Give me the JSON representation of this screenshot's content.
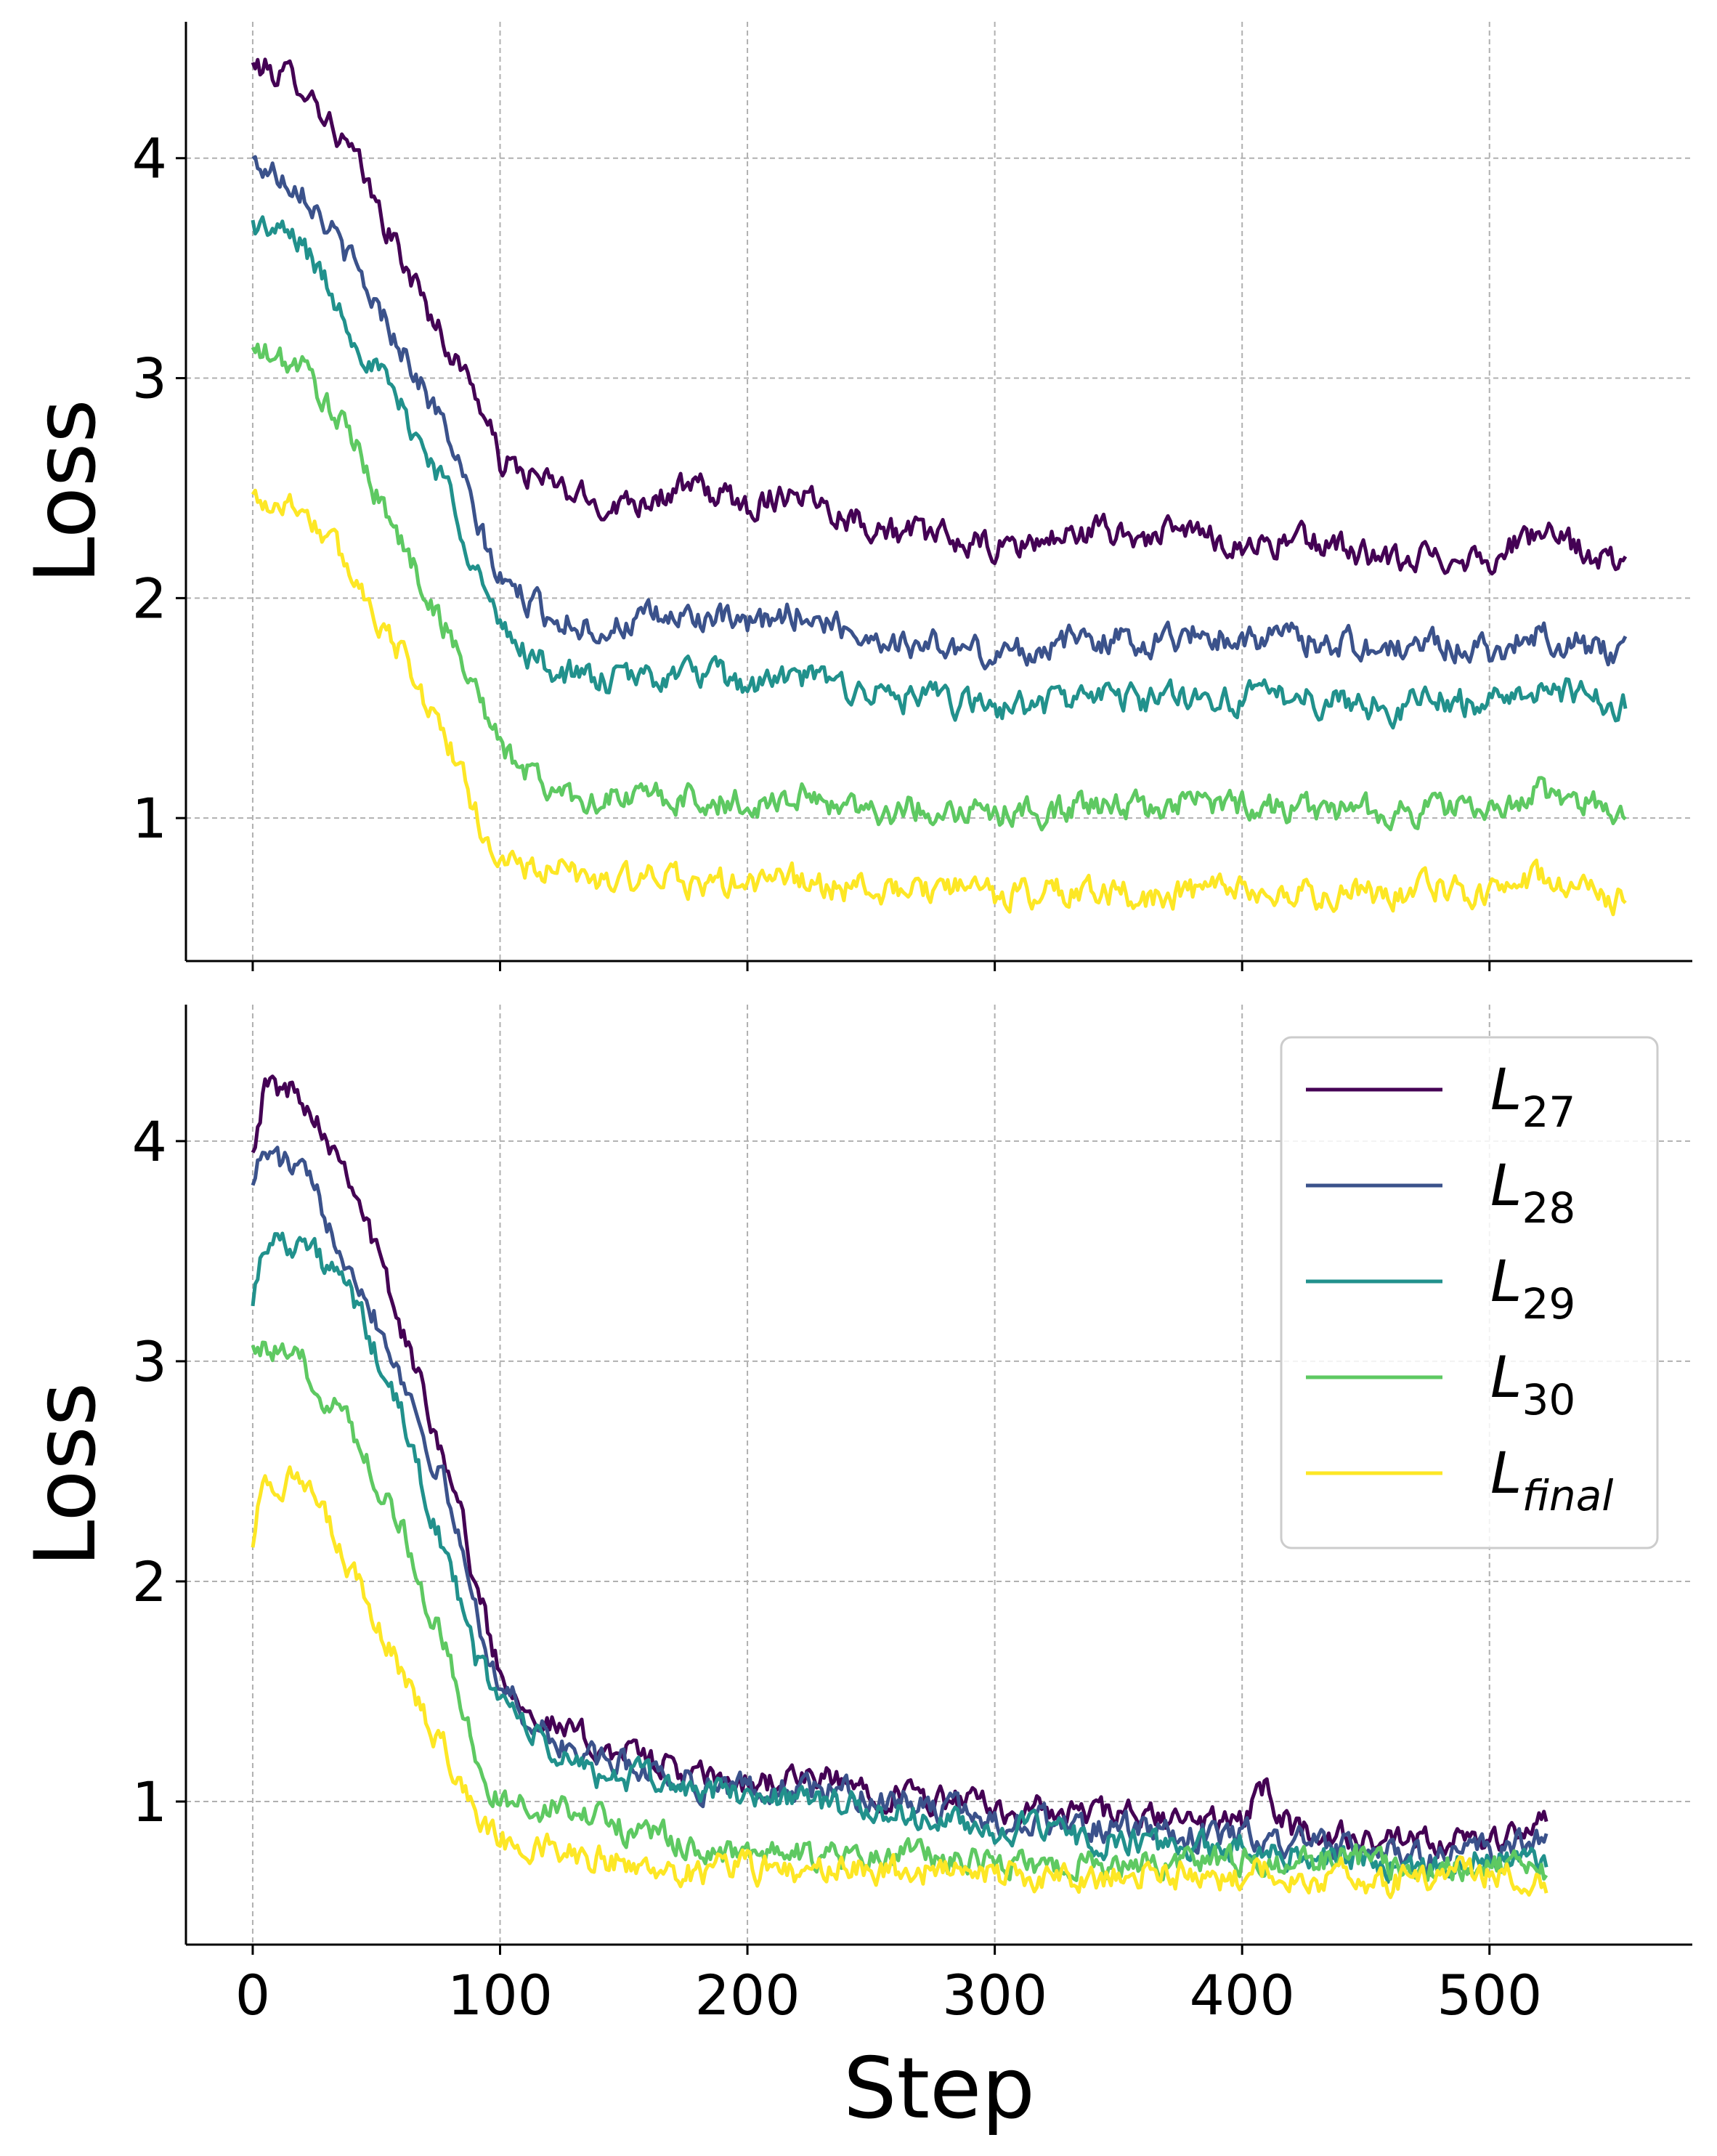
{
  "chart_data": [
    {
      "type": "line",
      "panel": "top",
      "title": "",
      "xlabel": "",
      "ylabel": "Loss",
      "xlim": [
        -27,
        582
      ],
      "ylim": [
        0.35,
        4.62
      ],
      "xticks": [
        0,
        100,
        200,
        300,
        400,
        500
      ],
      "yticks": [
        1,
        2,
        3,
        4
      ],
      "ytick_labels": [
        "1",
        "2",
        "3",
        "4"
      ],
      "grid": true,
      "legend": false,
      "steps": 555,
      "series": [
        {
          "name": "L_27",
          "color": "#440154",
          "x": [
            0,
            20,
            40,
            60,
            80,
            90,
            100,
            120,
            140,
            160,
            180,
            200,
            220,
            240,
            260,
            280,
            300,
            320,
            340,
            360,
            380,
            400,
            420,
            440,
            460,
            480,
            500,
            520,
            540,
            555
          ],
          "y": [
            4.42,
            4.35,
            4.02,
            3.55,
            3.12,
            2.95,
            2.62,
            2.52,
            2.42,
            2.46,
            2.5,
            2.42,
            2.5,
            2.38,
            2.3,
            2.27,
            2.22,
            2.26,
            2.31,
            2.28,
            2.3,
            2.24,
            2.26,
            2.24,
            2.15,
            2.2,
            2.18,
            2.3,
            2.2,
            2.15
          ]
        },
        {
          "name": "L_28",
          "color": "#3b528b",
          "x": [
            0,
            20,
            40,
            60,
            80,
            90,
            100,
            120,
            140,
            160,
            180,
            200,
            220,
            240,
            260,
            280,
            300,
            320,
            340,
            360,
            380,
            400,
            420,
            440,
            460,
            480,
            500,
            520,
            540,
            555
          ],
          "y": [
            3.98,
            3.88,
            3.52,
            3.15,
            2.72,
            2.35,
            2.08,
            1.92,
            1.86,
            1.9,
            1.92,
            1.86,
            1.94,
            1.86,
            1.8,
            1.78,
            1.74,
            1.78,
            1.82,
            1.8,
            1.84,
            1.82,
            1.82,
            1.8,
            1.76,
            1.8,
            1.76,
            1.84,
            1.78,
            1.75
          ]
        },
        {
          "name": "L_29",
          "color": "#21918c",
          "x": [
            0,
            20,
            40,
            60,
            80,
            90,
            100,
            120,
            140,
            160,
            180,
            200,
            220,
            240,
            260,
            280,
            300,
            320,
            340,
            360,
            380,
            400,
            420,
            440,
            460,
            480,
            500,
            520,
            540,
            555
          ],
          "y": [
            3.7,
            3.62,
            3.22,
            2.86,
            2.48,
            2.15,
            1.85,
            1.68,
            1.62,
            1.64,
            1.66,
            1.6,
            1.64,
            1.6,
            1.55,
            1.53,
            1.5,
            1.52,
            1.56,
            1.54,
            1.56,
            1.54,
            1.56,
            1.53,
            1.5,
            1.54,
            1.52,
            1.6,
            1.54,
            1.52
          ]
        },
        {
          "name": "L_30",
          "color": "#5ec962",
          "x": [
            0,
            20,
            40,
            60,
            80,
            90,
            100,
            120,
            140,
            160,
            180,
            200,
            220,
            240,
            260,
            280,
            300,
            320,
            340,
            360,
            380,
            400,
            420,
            440,
            460,
            480,
            500,
            520,
            540,
            555
          ],
          "y": [
            3.12,
            3.05,
            2.72,
            2.25,
            1.82,
            1.6,
            1.32,
            1.13,
            1.08,
            1.1,
            1.08,
            1.06,
            1.1,
            1.06,
            1.03,
            1.05,
            1.02,
            1.03,
            1.06,
            1.04,
            1.08,
            1.06,
            1.05,
            1.04,
            1.02,
            1.05,
            1.03,
            1.12,
            1.06,
            1.04
          ]
        },
        {
          "name": "L_final",
          "color": "#fde725",
          "x": [
            0,
            20,
            40,
            60,
            80,
            90,
            100,
            120,
            140,
            160,
            180,
            200,
            220,
            240,
            260,
            280,
            300,
            320,
            340,
            360,
            380,
            400,
            420,
            440,
            460,
            480,
            500,
            520,
            540,
            555
          ],
          "y": [
            2.45,
            2.42,
            2.12,
            1.75,
            1.32,
            1.02,
            0.8,
            0.76,
            0.72,
            0.72,
            0.7,
            0.7,
            0.72,
            0.68,
            0.66,
            0.68,
            0.65,
            0.66,
            0.67,
            0.64,
            0.66,
            0.66,
            0.65,
            0.65,
            0.64,
            0.68,
            0.66,
            0.72,
            0.68,
            0.62
          ]
        }
      ]
    },
    {
      "type": "line",
      "panel": "bottom",
      "title": "",
      "xlabel": "Step",
      "ylabel": "Loss",
      "xlim": [
        -27,
        582
      ],
      "ylim": [
        0.35,
        4.62
      ],
      "xticks": [
        0,
        100,
        200,
        300,
        400,
        500
      ],
      "xtick_labels": [
        "0",
        "100",
        "200",
        "300",
        "400",
        "500"
      ],
      "yticks": [
        1,
        2,
        3,
        4
      ],
      "ytick_labels": [
        "1",
        "2",
        "3",
        "4"
      ],
      "grid": true,
      "legend": true,
      "legend_position": "top-right",
      "steps": 523,
      "series": [
        {
          "name": "L_27",
          "color": "#440154",
          "x": [
            0,
            5,
            20,
            40,
            60,
            80,
            90,
            100,
            120,
            140,
            160,
            180,
            200,
            220,
            240,
            260,
            280,
            300,
            320,
            340,
            360,
            380,
            400,
            410,
            420,
            440,
            460,
            480,
            500,
            523
          ],
          "y": [
            4.0,
            4.25,
            4.22,
            3.85,
            3.15,
            2.5,
            2.0,
            1.58,
            1.35,
            1.25,
            1.2,
            1.1,
            1.08,
            1.1,
            1.08,
            1.04,
            1.0,
            0.97,
            0.95,
            0.94,
            0.93,
            0.9,
            0.92,
            1.05,
            0.88,
            0.84,
            0.8,
            0.8,
            0.82,
            0.9
          ]
        },
        {
          "name": "L_28",
          "color": "#3b528b",
          "x": [
            0,
            5,
            20,
            40,
            60,
            80,
            90,
            100,
            120,
            140,
            160,
            180,
            200,
            220,
            240,
            260,
            280,
            300,
            320,
            340,
            360,
            380,
            400,
            410,
            420,
            440,
            460,
            480,
            500,
            523
          ],
          "y": [
            3.85,
            3.95,
            3.85,
            3.45,
            2.95,
            2.35,
            1.88,
            1.52,
            1.28,
            1.18,
            1.15,
            1.08,
            1.05,
            1.06,
            1.04,
            1.0,
            0.96,
            0.92,
            0.9,
            0.88,
            0.86,
            0.84,
            0.85,
            0.82,
            0.82,
            0.78,
            0.76,
            0.76,
            0.78,
            0.84
          ]
        },
        {
          "name": "L_29",
          "color": "#21918c",
          "x": [
            0,
            5,
            20,
            40,
            60,
            80,
            90,
            100,
            120,
            140,
            160,
            180,
            200,
            220,
            240,
            260,
            280,
            300,
            320,
            340,
            360,
            380,
            400,
            410,
            420,
            440,
            460,
            480,
            500,
            523
          ],
          "y": [
            3.3,
            3.55,
            3.55,
            3.3,
            2.75,
            2.05,
            1.65,
            1.48,
            1.22,
            1.12,
            1.1,
            1.05,
            1.03,
            1.02,
            0.98,
            0.94,
            0.9,
            0.88,
            0.86,
            0.82,
            0.8,
            0.78,
            0.8,
            0.78,
            0.76,
            0.74,
            0.72,
            0.72,
            0.74,
            0.72
          ]
        },
        {
          "name": "L_30",
          "color": "#5ec962",
          "x": [
            0,
            5,
            20,
            40,
            60,
            80,
            90,
            100,
            120,
            140,
            160,
            180,
            200,
            220,
            240,
            260,
            280,
            300,
            320,
            340,
            360,
            380,
            400,
            410,
            420,
            440,
            460,
            480,
            500,
            523
          ],
          "y": [
            3.12,
            3.05,
            2.98,
            2.7,
            2.25,
            1.62,
            1.2,
            1.0,
            0.98,
            0.92,
            0.85,
            0.78,
            0.76,
            0.75,
            0.74,
            0.76,
            0.74,
            0.73,
            0.72,
            0.72,
            0.72,
            0.74,
            0.74,
            0.73,
            0.72,
            0.74,
            0.72,
            0.72,
            0.72,
            0.66
          ]
        },
        {
          "name": "L_final",
          "color": "#fde725",
          "x": [
            0,
            5,
            20,
            40,
            60,
            80,
            90,
            100,
            120,
            140,
            160,
            180,
            200,
            220,
            240,
            260,
            280,
            300,
            320,
            340,
            360,
            380,
            400,
            410,
            420,
            440,
            460,
            480,
            500,
            523
          ],
          "y": [
            2.2,
            2.48,
            2.45,
            2.05,
            1.58,
            1.2,
            0.95,
            0.82,
            0.8,
            0.74,
            0.7,
            0.68,
            0.7,
            0.68,
            0.7,
            0.68,
            0.7,
            0.66,
            0.64,
            0.66,
            0.68,
            0.66,
            0.66,
            0.68,
            0.64,
            0.66,
            0.64,
            0.66,
            0.68,
            0.64
          ]
        }
      ]
    }
  ],
  "legend": {
    "entries": [
      {
        "base": "L",
        "sub": "27",
        "color": "#440154"
      },
      {
        "base": "L",
        "sub": "28",
        "color": "#3b528b"
      },
      {
        "base": "L",
        "sub": "29",
        "color": "#21918c"
      },
      {
        "base": "L",
        "sub": "30",
        "color": "#5ec962"
      },
      {
        "base": "L",
        "sub": "final",
        "color": "#fde725"
      }
    ]
  }
}
